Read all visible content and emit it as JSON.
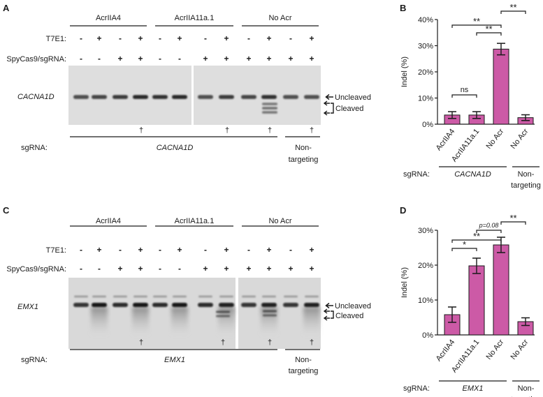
{
  "panels": {
    "A": {
      "letter": "A",
      "groups": [
        "AcrIIA4",
        "AcrIIA11a.1",
        "No Acr"
      ],
      "t7e1_label": "T7E1:",
      "cas9_label": "SpyCas9/sgRNA:",
      "t7e1_signs": [
        "-",
        "+",
        "-",
        "+",
        "-",
        "+",
        "-",
        "+",
        "-",
        "+",
        "-",
        "+"
      ],
      "cas9_signs": [
        "-",
        "-",
        "+",
        "+",
        "-",
        "-",
        "+",
        "+",
        "+",
        "+",
        "+",
        "+"
      ],
      "gene_label": "CACNA1D",
      "uncleaved_label": "Uncleaved",
      "cleaved_label": "Cleaved",
      "dagger": "†",
      "sgrna_label": "sgRNA:",
      "target_label": "CACNA1D",
      "nontargeting_label": [
        "Non-",
        "targeting"
      ]
    },
    "C": {
      "letter": "C",
      "groups": [
        "AcrIIA4",
        "AcrIIA11a.1",
        "No Acr"
      ],
      "t7e1_label": "T7E1:",
      "cas9_label": "SpyCas9/sgRNA:",
      "t7e1_signs": [
        "-",
        "+",
        "-",
        "+",
        "-",
        "+",
        "-",
        "+",
        "-",
        "+",
        "-",
        "+"
      ],
      "cas9_signs": [
        "-",
        "-",
        "+",
        "+",
        "-",
        "-",
        "+",
        "+",
        "+",
        "+",
        "+",
        "+"
      ],
      "gene_label": "EMX1",
      "uncleaved_label": "Uncleaved",
      "cleaved_label": "Cleaved",
      "dagger": "†",
      "sgrna_label": "sgRNA:",
      "target_label": "EMX1",
      "nontargeting_label": [
        "Non-",
        "targeting"
      ]
    }
  },
  "chart_data": [
    {
      "panel": "B",
      "type": "bar",
      "categories": [
        "AcrIIA4",
        "AcrIIA11a.1",
        "No Acr",
        "No Acr"
      ],
      "values": [
        3.5,
        3.5,
        28.7,
        2.5
      ],
      "errors": [
        1.3,
        1.3,
        2.2,
        1.1
      ],
      "ylabel": "Indel (%)",
      "ylim": [
        0,
        40
      ],
      "yticks": [
        "0%",
        "10%",
        "20%",
        "30%",
        "40%"
      ],
      "bar_color": "#cc5aa6",
      "sgrna_label": "sgRNA:",
      "group_labels": [
        "CACNA1D",
        "Non-targeting"
      ],
      "group_label_lines": [
        [
          "CACNA1D"
        ],
        [
          "Non-",
          "targeting"
        ]
      ],
      "comparisons": [
        {
          "from": 0,
          "to": 2,
          "label": "**"
        },
        {
          "from": 0,
          "to": 1,
          "label": "ns"
        },
        {
          "from": 1,
          "to": 2,
          "label": "**"
        },
        {
          "from": 2,
          "to": 3,
          "label": "**"
        }
      ]
    },
    {
      "panel": "D",
      "type": "bar",
      "categories": [
        "AcrIIA4",
        "AcrIIA11a.1",
        "No Acr",
        "No Acr"
      ],
      "values": [
        5.8,
        19.8,
        25.8,
        3.8
      ],
      "errors": [
        2.2,
        2.2,
        2.2,
        1.1
      ],
      "ylabel": "Indel (%)",
      "ylim": [
        0,
        30
      ],
      "yticks": [
        "0%",
        "10%",
        "20%",
        "30%"
      ],
      "bar_color": "#cc5aa6",
      "sgrna_label": "sgRNA:",
      "group_labels": [
        "EMX1",
        "Non-targeting"
      ],
      "group_label_lines": [
        [
          "EMX1"
        ],
        [
          "Non-",
          "targeting"
        ]
      ],
      "comparisons": [
        {
          "from": 0,
          "to": 2,
          "label": "**"
        },
        {
          "from": 0,
          "to": 1,
          "label": "*"
        },
        {
          "from": 1,
          "to": 2,
          "label": "p=0.08"
        },
        {
          "from": 2,
          "to": 3,
          "label": "**"
        }
      ]
    }
  ]
}
